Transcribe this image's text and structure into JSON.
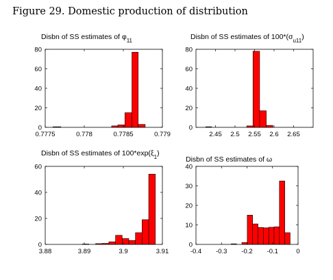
{
  "figure": {
    "title": "Figure 29. Domestic production of distribution"
  },
  "colors": {
    "bar_fill": "#ff0000",
    "bar_stroke": "#000000"
  },
  "chart_data": [
    {
      "type": "bar",
      "title": "Disbn of SS estimates of φ",
      "title_sub": "11",
      "xlim": [
        0.7775,
        0.779
      ],
      "ylim": [
        0,
        80
      ],
      "x_ticks": [
        "0.7775",
        "0.778",
        "0.7785",
        "0.779"
      ],
      "y_ticks": [
        "0",
        "20",
        "40",
        "60",
        "80"
      ],
      "grid": false,
      "bins": [
        {
          "x0": 0.7776,
          "x1": 0.7777,
          "value": 0.6
        },
        {
          "x0": 0.77835,
          "x1": 0.77843,
          "value": 1.5
        },
        {
          "x0": 0.77843,
          "x1": 0.77852,
          "value": 2.5
        },
        {
          "x0": 0.77852,
          "x1": 0.77861,
          "value": 15
        },
        {
          "x0": 0.77861,
          "x1": 0.77869,
          "value": 77
        },
        {
          "x0": 0.77869,
          "x1": 0.77878,
          "value": 3
        }
      ]
    },
    {
      "type": "bar",
      "title": "Disbn of SS estimates of 100*(σ",
      "title_sub": "u11",
      "title_end": ")",
      "xlim": [
        2.4,
        2.7
      ],
      "ylim": [
        0,
        80
      ],
      "x_ticks": [
        "2.45",
        "2.5",
        "2.55",
        "2.6",
        "2.65"
      ],
      "x_tick_values": [
        2.45,
        2.5,
        2.55,
        2.6,
        2.65
      ],
      "y_ticks": [
        "0",
        "20",
        "40",
        "60",
        "80"
      ],
      "grid": false,
      "bins": [
        {
          "x0": 2.425,
          "x1": 2.44,
          "value": 0.6
        },
        {
          "x0": 2.53,
          "x1": 2.546,
          "value": 1.5
        },
        {
          "x0": 2.546,
          "x1": 2.563,
          "value": 78
        },
        {
          "x0": 2.563,
          "x1": 2.58,
          "value": 17
        },
        {
          "x0": 2.58,
          "x1": 2.597,
          "value": 2
        }
      ]
    },
    {
      "type": "bar",
      "title": "Disbn of SS estimates of 100*exp(ξ",
      "title_sub": "1",
      "title_end": ")",
      "xlim": [
        3.88,
        3.91
      ],
      "ylim": [
        0,
        60
      ],
      "x_ticks": [
        "3.88",
        "3.89",
        "3.9",
        "3.91"
      ],
      "y_ticks": [
        "0",
        "20",
        "40",
        "60"
      ],
      "grid": false,
      "bins": [
        {
          "x0": 3.8895,
          "x1": 3.8912,
          "value": 0.3
        },
        {
          "x0": 3.8929,
          "x1": 3.8946,
          "value": 0.6
        },
        {
          "x0": 3.8946,
          "x1": 3.8963,
          "value": 0.8
        },
        {
          "x0": 3.8963,
          "x1": 3.898,
          "value": 2
        },
        {
          "x0": 3.898,
          "x1": 3.8997,
          "value": 7
        },
        {
          "x0": 3.8997,
          "x1": 3.9014,
          "value": 4.5
        },
        {
          "x0": 3.9014,
          "x1": 3.9031,
          "value": 3
        },
        {
          "x0": 3.9031,
          "x1": 3.9048,
          "value": 9
        },
        {
          "x0": 3.9048,
          "x1": 3.9065,
          "value": 19
        },
        {
          "x0": 3.9065,
          "x1": 3.9082,
          "value": 54
        }
      ]
    },
    {
      "type": "bar",
      "title": "Disbn of SS estimates of ω",
      "xlim": [
        -0.4,
        0
      ],
      "ylim": [
        0,
        40
      ],
      "x_ticks": [
        "-0.4",
        "-0.3",
        "-0.2",
        "-0.1",
        "0"
      ],
      "y_ticks": [
        "0",
        "10",
        "20",
        "30",
        "40"
      ],
      "grid": false,
      "bins": [
        {
          "x0": -0.262,
          "x1": -0.241,
          "value": 0.3
        },
        {
          "x0": -0.22,
          "x1": -0.199,
          "value": 1
        },
        {
          "x0": -0.199,
          "x1": -0.178,
          "value": 15
        },
        {
          "x0": -0.178,
          "x1": -0.157,
          "value": 10.5
        },
        {
          "x0": -0.157,
          "x1": -0.136,
          "value": 8.7
        },
        {
          "x0": -0.136,
          "x1": -0.115,
          "value": 8.5
        },
        {
          "x0": -0.115,
          "x1": -0.094,
          "value": 8.8
        },
        {
          "x0": -0.094,
          "x1": -0.073,
          "value": 9
        },
        {
          "x0": -0.073,
          "x1": -0.052,
          "value": 32.5
        },
        {
          "x0": -0.052,
          "x1": -0.031,
          "value": 6
        }
      ]
    }
  ]
}
